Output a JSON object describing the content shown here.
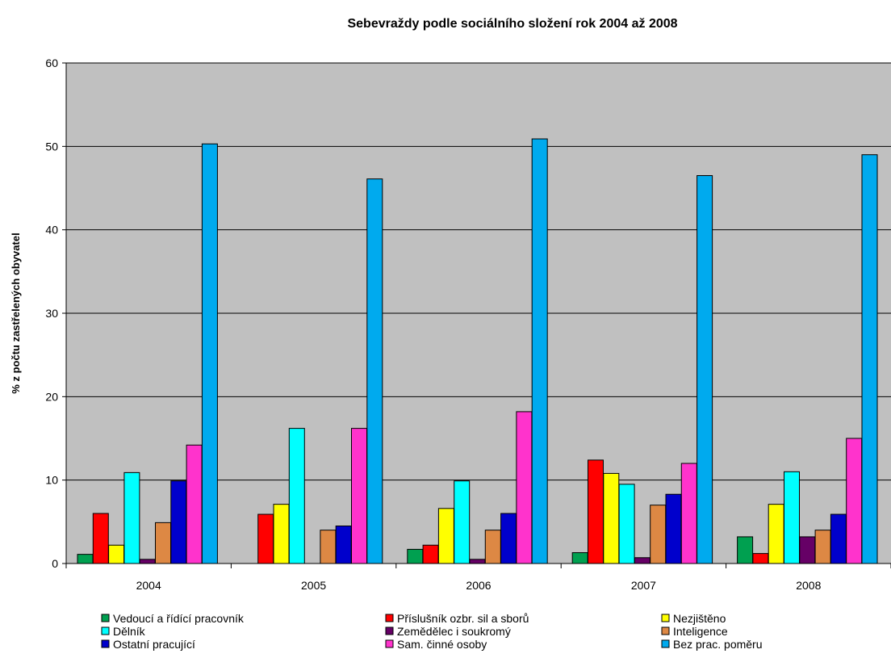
{
  "chart_data": {
    "type": "bar",
    "title": "Sebevraždy podle sociálního složení rok 2004 až 2008",
    "xlabel": "",
    "ylabel": "% z počtu zastřelených obyvatel",
    "ylim": [
      0,
      60
    ],
    "yticks": [
      0,
      10,
      20,
      30,
      40,
      50,
      60
    ],
    "grid": true,
    "background": "#c0c0c0",
    "legend_position": "bottom",
    "categories": [
      "2004",
      "2005",
      "2006",
      "2007",
      "2008"
    ],
    "series": [
      {
        "name": "Vedoucí a řídící pracovník",
        "color": "#00a050",
        "values": [
          1.1,
          0,
          1.7,
          1.3,
          3.2
        ]
      },
      {
        "name": "Příslušník ozbr. sil a sborů",
        "color": "#ff0000",
        "values": [
          6.0,
          5.9,
          2.2,
          12.4,
          1.2
        ]
      },
      {
        "name": "Nezjištěno",
        "color": "#ffff00",
        "values": [
          2.2,
          7.1,
          6.6,
          10.8,
          7.1
        ]
      },
      {
        "name": "Dělník",
        "color": "#00ffff",
        "values": [
          10.9,
          16.2,
          9.9,
          9.5,
          11.0
        ]
      },
      {
        "name": "Zemědělec i soukromý",
        "color": "#660066",
        "values": [
          0.5,
          0,
          0.5,
          0.7,
          3.2
        ]
      },
      {
        "name": "Inteligence",
        "color": "#dd8844",
        "values": [
          4.9,
          4.0,
          4.0,
          7.0,
          4.0
        ]
      },
      {
        "name": "Ostatní pracující",
        "color": "#0000cc",
        "values": [
          9.9,
          4.5,
          6.0,
          8.3,
          5.9
        ]
      },
      {
        "name": "Sam. činné osoby",
        "color": "#ff33cc",
        "values": [
          14.2,
          16.2,
          18.2,
          12.0,
          15.0
        ]
      },
      {
        "name": "Bez prac. poměru",
        "color": "#00aaee",
        "values": [
          50.3,
          46.1,
          50.9,
          46.5,
          49.0
        ]
      }
    ]
  }
}
